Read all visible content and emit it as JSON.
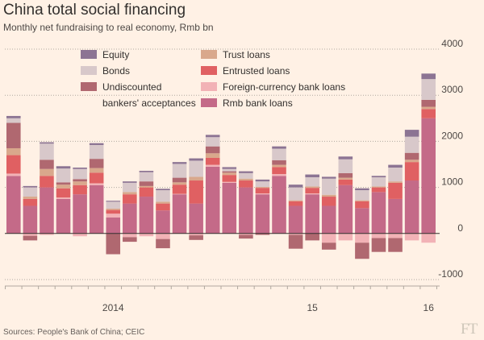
{
  "header": {
    "title": "China total social financing",
    "subtitle": "Monthly net fundraising to real economy, Rmb bn"
  },
  "footer": {
    "source": "Sources: People's Bank of China; CEIC",
    "logo": "FT"
  },
  "colors": {
    "background": "#fff1e5",
    "grid": "#b0a89f",
    "equity": "#8c7493",
    "bonds": "#d8c8ca",
    "undiscounted": "#b06870",
    "trust": "#d9a88c",
    "entrusted": "#e06062",
    "foreign": "#f2b2b6",
    "rmb": "#c46a88"
  },
  "chart_data": {
    "type": "bar",
    "stacked": true,
    "title": "China total social financing",
    "subtitle": "Monthly net fundraising to real economy, Rmb bn",
    "ylim": [
      -1000,
      4000
    ],
    "yticks": [
      4000,
      3000,
      2000,
      1000,
      0,
      -1000
    ],
    "ytick_labels": [
      "4000",
      "3000",
      "2000",
      "1000",
      "0",
      "-1000"
    ],
    "y_axis_position": "right",
    "grid": true,
    "legend_position": "top",
    "x_tick_labels": [
      {
        "label": "2014",
        "index": 6
      },
      {
        "label": "15",
        "index": 18
      },
      {
        "label": "16",
        "index": 25
      }
    ],
    "periods": [
      "2013-12",
      "2014-01",
      "2014-02",
      "2014-03",
      "2014-04",
      "2014-05",
      "2014-06",
      "2014-07",
      "2014-08",
      "2014-09",
      "2014-10",
      "2014-11",
      "2014-12",
      "2015-01",
      "2015-02",
      "2015-03",
      "2015-04",
      "2015-05",
      "2015-06",
      "2015-07",
      "2015-08",
      "2015-09",
      "2015-10",
      "2015-11",
      "2015-12",
      "2016-01"
    ],
    "series": [
      {
        "name": "Rmb bank loans",
        "key": "rmb",
        "values": [
          1250,
          600,
          1000,
          750,
          850,
          1050,
          350,
          650,
          800,
          500,
          850,
          650,
          1450,
          1100,
          1000,
          850,
          1250,
          600,
          850,
          600,
          1050,
          550,
          900,
          750,
          1150,
          2500
        ]
      },
      {
        "name": "Foreign-currency bank loans",
        "key": "foreign",
        "values": [
          50,
          -50,
          -30,
          30,
          -60,
          40,
          80,
          -80,
          -60,
          -120,
          10,
          -40,
          40,
          20,
          -30,
          20,
          40,
          -30,
          20,
          -200,
          -150,
          -200,
          -100,
          -100,
          -150,
          -200
        ]
      },
      {
        "name": "Entrusted loans",
        "key": "entrusted",
        "values": [
          400,
          150,
          250,
          200,
          200,
          230,
          80,
          200,
          200,
          150,
          200,
          500,
          150,
          150,
          150,
          120,
          150,
          100,
          120,
          200,
          120,
          150,
          100,
          350,
          400,
          200
        ]
      },
      {
        "name": "Trust loans",
        "key": "trust",
        "values": [
          150,
          50,
          150,
          80,
          80,
          100,
          30,
          50,
          30,
          40,
          50,
          80,
          100,
          50,
          40,
          20,
          50,
          20,
          30,
          40,
          40,
          20,
          20,
          30,
          50,
          50
        ]
      },
      {
        "name": "Undiscounted bankers' acceptances",
        "key": "undiscounted",
        "values": [
          550,
          -100,
          200,
          50,
          50,
          200,
          -450,
          -100,
          100,
          -200,
          100,
          -100,
          150,
          30,
          -80,
          -30,
          100,
          -300,
          -150,
          -150,
          100,
          -350,
          -300,
          -300,
          150,
          150
        ]
      },
      {
        "name": "Bonds",
        "key": "bonds",
        "values": [
          100,
          200,
          350,
          300,
          220,
          300,
          150,
          200,
          200,
          250,
          300,
          350,
          200,
          50,
          120,
          120,
          250,
          280,
          200,
          350,
          300,
          220,
          200,
          300,
          350,
          450
        ]
      },
      {
        "name": "Equity",
        "key": "equity",
        "values": [
          50,
          30,
          30,
          50,
          30,
          40,
          20,
          30,
          30,
          30,
          40,
          50,
          50,
          40,
          40,
          40,
          50,
          60,
          60,
          40,
          60,
          40,
          30,
          60,
          150,
          120
        ]
      }
    ]
  },
  "legend": {
    "left": [
      {
        "key": "equity",
        "label": "Equity"
      },
      {
        "key": "bonds",
        "label": "Bonds"
      },
      {
        "key": "undiscounted",
        "label": "Undiscounted",
        "label2": "bankers' acceptances"
      }
    ],
    "right": [
      {
        "key": "trust",
        "label": "Trust loans"
      },
      {
        "key": "entrusted",
        "label": "Entrusted loans"
      },
      {
        "key": "foreign",
        "label": "Foreign-currency bank loans"
      },
      {
        "key": "rmb",
        "label": "Rmb bank loans"
      }
    ]
  }
}
